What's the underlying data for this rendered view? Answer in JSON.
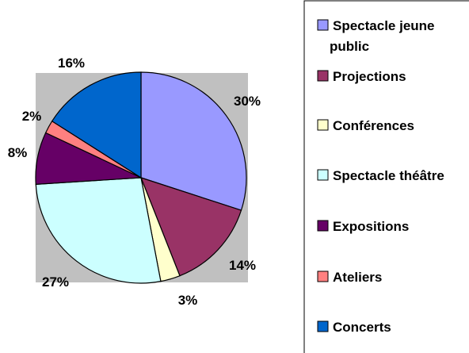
{
  "chart_data": {
    "type": "pie",
    "title": "",
    "slices": [
      {
        "label": "Spectacle jeune public",
        "label_lines": [
          "Spectacle jeune",
          "public"
        ],
        "value": 30,
        "value_label": "30%",
        "color": "#9999ff"
      },
      {
        "label": "Projections",
        "label_lines": [
          "Projections"
        ],
        "value": 14,
        "value_label": "14%",
        "color": "#993366"
      },
      {
        "label": "Conférences",
        "label_lines": [
          "Conférences"
        ],
        "value": 3,
        "value_label": "3%",
        "color": "#ffffcc"
      },
      {
        "label": "Spectacle théâtre",
        "label_lines": [
          "Spectacle théâtre"
        ],
        "value": 27,
        "value_label": "27%",
        "color": "#ccffff"
      },
      {
        "label": "Expositions",
        "label_lines": [
          "Expositions"
        ],
        "value": 8,
        "value_label": "8%",
        "color": "#660066"
      },
      {
        "label": "Ateliers",
        "label_lines": [
          "Ateliers"
        ],
        "value": 2,
        "value_label": "2%",
        "color": "#ff8080"
      },
      {
        "label": "Concerts",
        "label_lines": [
          "Concerts"
        ],
        "value": 16,
        "value_label": "16%",
        "color": "#0066cc"
      }
    ],
    "start_angle_deg": 90,
    "direction": "clockwise",
    "plot_background": "#c0c0c0",
    "legend_position": "right"
  }
}
